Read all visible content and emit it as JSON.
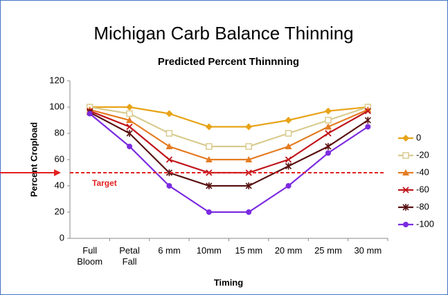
{
  "chart_data": {
    "type": "line",
    "title": "Michigan Carb Balance Thinning",
    "subtitle": "Predicted Percent Thinnning",
    "y_label": "Percent Cropload",
    "x_label": "Timing",
    "categories": [
      "Full Bloom",
      "Petal Fall",
      "6 mm",
      "10mm",
      "15 mm",
      "20 mm",
      "25 mm",
      "30 mm"
    ],
    "series": [
      {
        "name": "0",
        "color": "#e8a317",
        "marker": "diamond",
        "values": [
          100,
          100,
          95,
          85,
          85,
          90,
          97,
          100
        ]
      },
      {
        "name": "-20",
        "color": "#d8cb8e",
        "marker": "square",
        "values": [
          100,
          95,
          80,
          70,
          70,
          80,
          90,
          100
        ]
      },
      {
        "name": "-40",
        "color": "#e47c22",
        "marker": "triangle",
        "values": [
          98,
          90,
          70,
          60,
          60,
          70,
          85,
          98
        ]
      },
      {
        "name": "-60",
        "color": "#c0151b",
        "marker": "x",
        "values": [
          97,
          85,
          60,
          50,
          50,
          60,
          80,
          97
        ]
      },
      {
        "name": "-80",
        "color": "#5a1212",
        "marker": "star",
        "values": [
          96,
          80,
          50,
          40,
          40,
          55,
          70,
          90
        ]
      },
      {
        "name": "-100",
        "color": "#7b2be0",
        "marker": "circle",
        "values": [
          95,
          70,
          40,
          20,
          20,
          40,
          65,
          85
        ]
      }
    ],
    "target": {
      "label": "Target",
      "value": 50,
      "color": "#e32020"
    },
    "ylim": [
      0,
      120
    ],
    "yticks": [
      0,
      20,
      40,
      60,
      80,
      100,
      120
    ],
    "legend": "right"
  }
}
